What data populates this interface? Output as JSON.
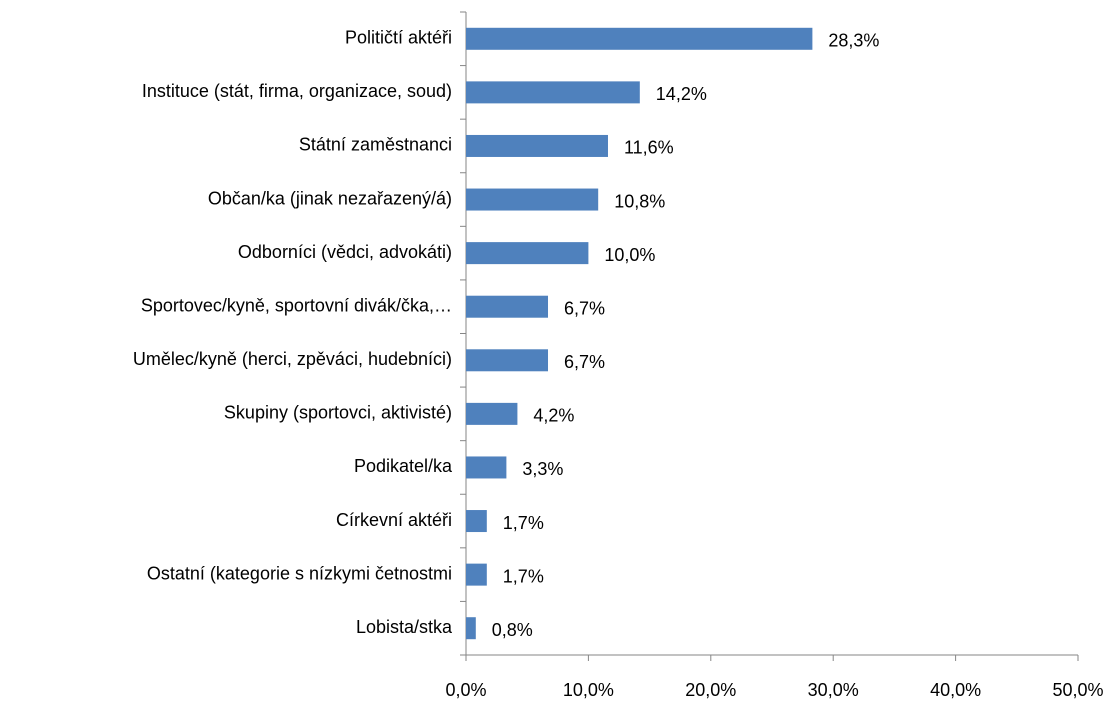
{
  "chart_data": {
    "type": "hbar",
    "categories": [
      "Političtí aktéři",
      "Instituce (stát, firma, organizace, soud)",
      "Státní zaměstnanci",
      "Občan/ka (jinak nezařazený/á)",
      "Odborníci (vědci, advokáti)",
      "Sportovec/kyně, sportovní divák/čka,…",
      "Umělec/kyně (herci, zpěváci, hudebníci)",
      "Skupiny (sportovci, aktivisté)",
      "Podikatel/ka",
      "Církevní aktéři",
      "Ostatní (kategorie s nízkymi četnostmi",
      "Lobista/stka"
    ],
    "values": [
      28.3,
      14.2,
      11.6,
      10.8,
      10.0,
      6.7,
      6.7,
      4.2,
      3.3,
      1.7,
      1.7,
      0.8
    ],
    "value_labels": [
      "28,3%",
      "14,2%",
      "11,6%",
      "10,8%",
      "10,0%",
      "6,7%",
      "6,7%",
      "4,2%",
      "3,3%",
      "1,7%",
      "1,7%",
      "0,8%"
    ],
    "color": "#4f81bd",
    "xlim": [
      0,
      50
    ],
    "xticks": [
      {
        "value": 0,
        "label": "0,0%"
      },
      {
        "value": 10,
        "label": "10,0%"
      },
      {
        "value": 20,
        "label": "20,0%"
      },
      {
        "value": 30,
        "label": "30,0%"
      },
      {
        "value": 40,
        "label": "40,0%"
      },
      {
        "value": 50,
        "label": "50,0%"
      }
    ],
    "grid": false
  }
}
